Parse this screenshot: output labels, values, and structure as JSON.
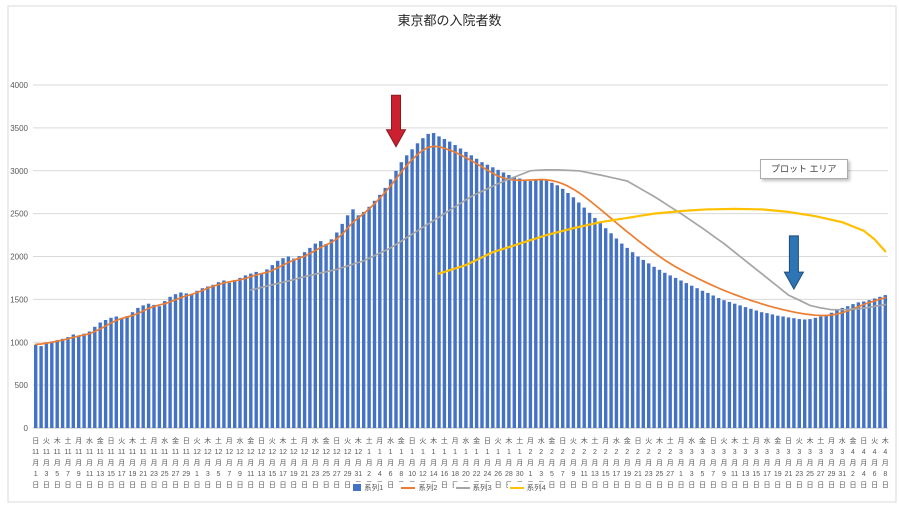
{
  "plot_area_label": "プロット エリア",
  "axis": {
    "y_ticks": [
      0,
      500,
      1000,
      1500,
      2000,
      2500,
      3000,
      3500,
      4000
    ]
  },
  "calendar": {
    "months": [
      {
        "num": 11,
        "days": 30
      },
      {
        "num": 12,
        "days": 31
      },
      {
        "num": 1,
        "days": 31
      },
      {
        "num": 2,
        "days": 28
      },
      {
        "num": 3,
        "days": 31
      },
      {
        "num": 4,
        "days": 8
      }
    ],
    "weekdays": [
      "日",
      "月",
      "火",
      "水",
      "木",
      "金",
      "土"
    ],
    "start_weekday": 0,
    "month_suffix": "月",
    "day_suffix": "日",
    "label_every": 2
  },
  "chart_data": {
    "type": "bar",
    "title": "東京都の入院者数",
    "xlabel": "",
    "ylabel": "",
    "ylim": [
      0,
      4000
    ],
    "ytick_step": 500,
    "x_count": 159,
    "legend_position": "bottom",
    "grid": true,
    "series": [
      {
        "name": "系列1",
        "type": "bar",
        "color": "#4472C4",
        "start_index": 0,
        "values": [
          970,
          955,
          1000,
          1010,
          1025,
          1040,
          1060,
          1090,
          1070,
          1100,
          1125,
          1180,
          1230,
          1260,
          1285,
          1300,
          1280,
          1305,
          1350,
          1400,
          1430,
          1450,
          1435,
          1420,
          1480,
          1530,
          1560,
          1580,
          1570,
          1555,
          1600,
          1630,
          1650,
          1670,
          1700,
          1720,
          1695,
          1725,
          1750,
          1780,
          1800,
          1820,
          1795,
          1850,
          1900,
          1950,
          1980,
          2000,
          1975,
          2005,
          2050,
          2100,
          2150,
          2180,
          2145,
          2200,
          2280,
          2380,
          2480,
          2550,
          2480,
          2520,
          2580,
          2650,
          2720,
          2800,
          2900,
          3000,
          3100,
          3180,
          3250,
          3320,
          3380,
          3430,
          3440,
          3400,
          3370,
          3340,
          3300,
          3260,
          3220,
          3180,
          3140,
          3100,
          3070,
          3040,
          3010,
          2980,
          2950,
          2930,
          2910,
          2890,
          2880,
          2890,
          2900,
          2885,
          2860,
          2830,
          2790,
          2740,
          2690,
          2630,
          2570,
          2510,
          2450,
          2390,
          2330,
          2270,
          2210,
          2150,
          2100,
          2050,
          2000,
          1960,
          1920,
          1880,
          1845,
          1810,
          1780,
          1750,
          1720,
          1690,
          1660,
          1630,
          1600,
          1575,
          1545,
          1515,
          1490,
          1470,
          1450,
          1430,
          1410,
          1390,
          1370,
          1350,
          1340,
          1325,
          1310,
          1300,
          1290,
          1280,
          1270,
          1265,
          1270,
          1285,
          1300,
          1320,
          1345,
          1370,
          1400,
          1420,
          1445,
          1465,
          1475,
          1490,
          1510,
          1530,
          1550
        ]
      },
      {
        "name": "系列2",
        "type": "line",
        "color": "#ED7D31",
        "start_index": 0,
        "values": [
          975,
          980,
          990,
          1000,
          1012,
          1025,
          1040,
          1058,
          1072,
          1085,
          1100,
          1125,
          1155,
          1190,
          1225,
          1255,
          1278,
          1295,
          1312,
          1335,
          1365,
          1395,
          1418,
          1435,
          1450,
          1470,
          1495,
          1520,
          1542,
          1558,
          1580,
          1605,
          1630,
          1652,
          1672,
          1692,
          1705,
          1715,
          1728,
          1745,
          1765,
          1785,
          1800,
          1815,
          1838,
          1868,
          1900,
          1930,
          1958,
          1980,
          2005,
          2035,
          2070,
          2105,
          2135,
          2165,
          2205,
          2260,
          2330,
          2400,
          2450,
          2500,
          2555,
          2615,
          2680,
          2750,
          2825,
          2905,
          2985,
          3060,
          3130,
          3190,
          3240,
          3272,
          3285,
          3280,
          3262,
          3240,
          3215,
          3185,
          3152,
          3118,
          3082,
          3045,
          3008,
          2970,
          2938,
          2915,
          2900,
          2892,
          2888,
          2890,
          2892,
          2895,
          2898,
          2895,
          2885,
          2870,
          2848,
          2820,
          2785,
          2745,
          2700,
          2652,
          2602,
          2550,
          2498,
          2445,
          2392,
          2340,
          2288,
          2238,
          2188,
          2140,
          2092,
          2045,
          2000,
          1958,
          1918,
          1880,
          1845,
          1812,
          1780,
          1748,
          1718,
          1688,
          1660,
          1632,
          1605,
          1580,
          1556,
          1532,
          1510,
          1488,
          1468,
          1448,
          1430,
          1412,
          1396,
          1380,
          1366,
          1352,
          1340,
          1330,
          1322,
          1316,
          1312,
          1312,
          1318,
          1330,
          1345,
          1365,
          1390,
          1415,
          1440,
          1462,
          1482,
          1502,
          1520
        ]
      },
      {
        "name": "系列3",
        "type": "line",
        "color": "#A5A5A5",
        "start_index": 40,
        "values": [
          1610,
          1625,
          1640,
          1655,
          1670,
          1685,
          1700,
          1716,
          1732,
          1748,
          1764,
          1780,
          1794,
          1808,
          1822,
          1836,
          1850,
          1870,
          1890,
          1910,
          1930,
          1950,
          1980,
          2010,
          2040,
          2070,
          2100,
          2140,
          2180,
          2220,
          2260,
          2300,
          2340,
          2380,
          2420,
          2460,
          2500,
          2540,
          2580,
          2620,
          2660,
          2700,
          2730,
          2760,
          2790,
          2820,
          2850,
          2875,
          2900,
          2925,
          2950,
          2975,
          3000,
          3005,
          3008,
          3010,
          3010,
          3010,
          3008,
          3005,
          3002,
          3000,
          2988,
          2975,
          2962,
          2950,
          2936,
          2922,
          2908,
          2894,
          2880,
          2844,
          2808,
          2772,
          2736,
          2700,
          2660,
          2620,
          2580,
          2540,
          2500,
          2458,
          2415,
          2372,
          2330,
          2285,
          2240,
          2195,
          2150,
          2100,
          2050,
          2000,
          1950,
          1900,
          1850,
          1800,
          1750,
          1700,
          1650,
          1600,
          1550,
          1520,
          1490,
          1460,
          1430,
          1415,
          1400,
          1390,
          1380,
          1380,
          1380,
          1382,
          1385,
          1390,
          1398,
          1408,
          1418,
          1428,
          1440
        ]
      },
      {
        "name": "系列4",
        "type": "line",
        "color": "#FFC000",
        "start_index": 75,
        "values": [
          1800,
          1820,
          1840,
          1860,
          1880,
          1900,
          1930,
          1960,
          1990,
          2020,
          2050,
          2070,
          2090,
          2110,
          2130,
          2150,
          2170,
          2190,
          2210,
          2230,
          2250,
          2266,
          2282,
          2298,
          2314,
          2330,
          2344,
          2358,
          2372,
          2386,
          2400,
          2410,
          2420,
          2430,
          2440,
          2450,
          2460,
          2470,
          2480,
          2490,
          2500,
          2506,
          2512,
          2518,
          2524,
          2530,
          2534,
          2538,
          2542,
          2546,
          2550,
          2551,
          2552,
          2553,
          2554,
          2555,
          2554,
          2553,
          2552,
          2551,
          2550,
          2544,
          2538,
          2532,
          2526,
          2520,
          2510,
          2500,
          2490,
          2480,
          2470,
          2456,
          2442,
          2428,
          2414,
          2400,
          2375,
          2350,
          2325,
          2300,
          2250,
          2200,
          2130,
          2060
        ]
      }
    ]
  },
  "annotations": [
    {
      "name": "red-down-arrow",
      "color": "#CC2030",
      "stroke": "#8B1A1F",
      "day_index": 67,
      "value_from": 3880,
      "value_to": 3280
    },
    {
      "name": "blue-down-arrow",
      "color": "#2E75B6",
      "stroke": "#1F4E79",
      "day_index": 141,
      "value_from": 2240,
      "value_to": 1620
    }
  ]
}
